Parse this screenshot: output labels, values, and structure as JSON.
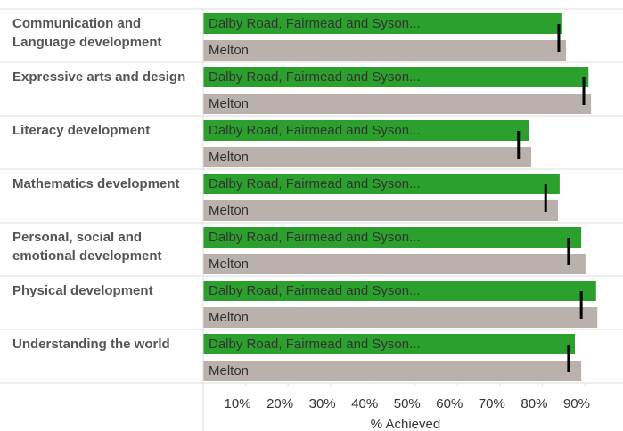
{
  "chart_data": {
    "type": "bar",
    "orientation": "horizontal",
    "categories": [
      "Communication and Language development",
      "Expressive arts and design",
      "Literacy development",
      "Mathematics development",
      "Personal, social and emotional development",
      "Physical development",
      "Understanding the world"
    ],
    "series": [
      {
        "name": "Dalby Road, Fairmead and Syson...",
        "color": "#2ca02c",
        "values": [
          84.5,
          90.9,
          76.8,
          84.1,
          89.2,
          92.7,
          87.7
        ]
      },
      {
        "name": "Melton",
        "color": "#bab0ac",
        "values": [
          85.6,
          91.5,
          77.4,
          83.7,
          90.2,
          93.0,
          89.2
        ]
      }
    ],
    "reference_values": [
      83.9,
      89.8,
      74.4,
      80.8,
      86.2,
      89.2,
      86.2
    ],
    "reference_color": "#000000",
    "xlabel": "% Achieved",
    "xlim": [
      0,
      98
    ],
    "xticks": [
      {
        "value": 10,
        "label": "10%"
      },
      {
        "value": 20,
        "label": "20%"
      },
      {
        "value": 30,
        "label": "30%"
      },
      {
        "value": 40,
        "label": "40%"
      },
      {
        "value": 50,
        "label": "50%"
      },
      {
        "value": 60,
        "label": "60%"
      },
      {
        "value": 70,
        "label": "70%"
      },
      {
        "value": 80,
        "label": "80%"
      },
      {
        "value": 90,
        "label": "90%"
      }
    ]
  }
}
